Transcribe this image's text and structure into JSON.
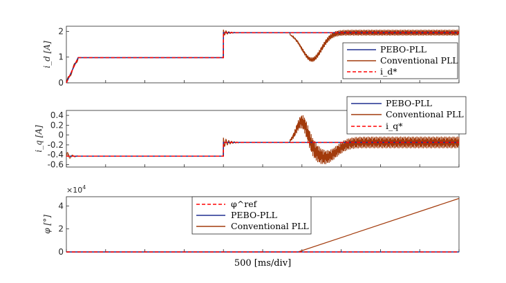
{
  "colors": {
    "pebo": "#1f2f8f",
    "conventional": "#a23a0b",
    "reference": "#ff0000",
    "axis": "#262626"
  },
  "xlabel": "500 [ms/div]",
  "chart_data": [
    {
      "type": "line",
      "ylabel": "i_d [A]",
      "ylim": [
        0,
        2.2
      ],
      "yticks": [
        "0",
        "1",
        "2"
      ],
      "ytick_values": [
        0,
        1,
        2
      ],
      "legend": {
        "placement": "right",
        "entries": [
          "PEBO-PLL",
          "Conventional PLL",
          "i_d*"
        ]
      },
      "series": [
        {
          "name": "PEBO-PLL",
          "x": [
            0,
            0.03,
            0.4,
            0.4,
            1.0
          ],
          "y": [
            0,
            0.98,
            0.98,
            1.95,
            1.95
          ]
        },
        {
          "name": "Conventional PLL",
          "x": [
            0,
            0.03,
            0.4,
            0.4,
            0.57,
            0.63,
            0.8,
            1.0
          ],
          "y": [
            0,
            0.98,
            0.98,
            1.95,
            1.95,
            0.85,
            1.95,
            1.95
          ]
        },
        {
          "name": "i_d*",
          "x": [
            0,
            0.03,
            0.4,
            0.4,
            1.0
          ],
          "y": [
            0,
            0.98,
            0.98,
            1.95,
            1.95
          ]
        }
      ]
    },
    {
      "type": "line",
      "ylabel": "i_q [A]",
      "ylim": [
        -0.65,
        0.5
      ],
      "yticks": [
        "0.4",
        "0.2",
        "0",
        "-0.2",
        "-0.4",
        "-0.6"
      ],
      "ytick_values": [
        0.4,
        0.2,
        0,
        -0.2,
        -0.4,
        -0.6
      ],
      "legend": {
        "placement": "top-right",
        "entries": [
          "PEBO-PLL",
          "Conventional PLL",
          "i_q*"
        ]
      },
      "series": [
        {
          "name": "PEBO-PLL",
          "x": [
            0,
            0.4,
            0.4,
            1.0
          ],
          "y": [
            -0.43,
            -0.43,
            -0.15,
            -0.15
          ]
        },
        {
          "name": "Conventional PLL",
          "x": [
            0,
            0.4,
            0.4,
            0.57,
            0.6,
            0.66,
            1.0
          ],
          "y": [
            -0.43,
            -0.43,
            -0.15,
            -0.15,
            0.4,
            -0.55,
            -0.15
          ]
        },
        {
          "name": "i_q*",
          "x": [
            0,
            0.4,
            0.4,
            1.0
          ],
          "y": [
            -0.43,
            -0.43,
            -0.15,
            -0.15
          ]
        }
      ]
    },
    {
      "type": "line",
      "ylabel": "φ [°]",
      "ylim": [
        0,
        4.8
      ],
      "yticks": [
        "0",
        "2",
        "4"
      ],
      "ytick_values": [
        0,
        2,
        4
      ],
      "yscale_label": "×10",
      "yscale_exp": "4",
      "legend": {
        "placement": "top-center",
        "entries": [
          "φ^ref",
          "PEBO-PLL",
          "Conventional PLL"
        ]
      },
      "series": [
        {
          "name": "φ^ref",
          "x": [
            0,
            1.0
          ],
          "y": [
            0,
            0
          ]
        },
        {
          "name": "PEBO-PLL",
          "x": [
            0,
            1.0
          ],
          "y": [
            0,
            0
          ]
        },
        {
          "name": "Conventional PLL",
          "x": [
            0,
            0.59,
            1.0
          ],
          "y": [
            0,
            0,
            4.65
          ]
        }
      ]
    }
  ]
}
